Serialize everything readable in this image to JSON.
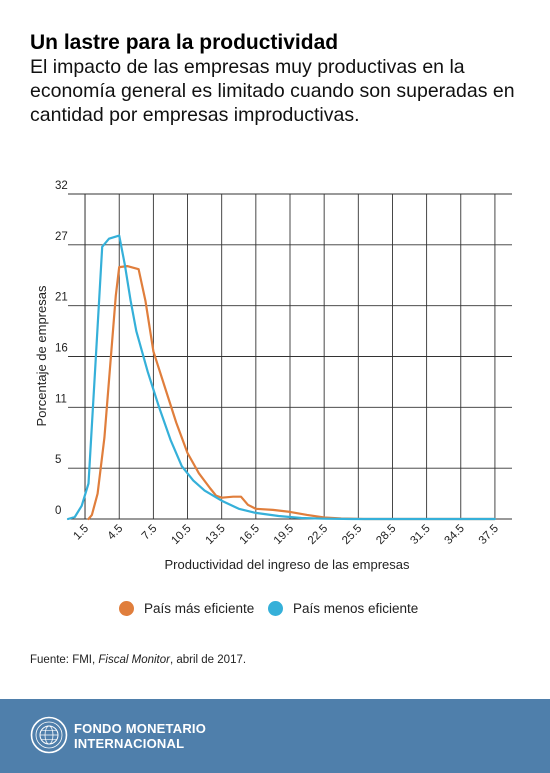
{
  "header": {
    "title": "Un lastre para la productividad",
    "subtitle": "El impacto de las empresas muy productivas en la economía general es limitado cuando son superadas en cantidad por empresas improductivas."
  },
  "chart_data": {
    "type": "line",
    "title": "",
    "xlabel": "Productividad del ingreso de las empresas",
    "ylabel": "Porcentaje de empresas",
    "x_ticks": [
      "1.5",
      "4.5",
      "7.5",
      "10.5",
      "13.5",
      "16.5",
      "19.5",
      "22.5",
      "25.5",
      "28.5",
      "31.5",
      "34.5",
      "37.5"
    ],
    "y_ticks": [
      "0",
      "5",
      "11",
      "16",
      "21",
      "27",
      "32"
    ],
    "xlim": [
      0,
      39
    ],
    "ylim": [
      0,
      32
    ],
    "grid": true,
    "legend_position": "bottom-center",
    "series": [
      {
        "name": "País más eficiente",
        "color": "#e07e3c",
        "points": [
          [
            1.8,
            0
          ],
          [
            2.1,
            0.4
          ],
          [
            2.6,
            2.5
          ],
          [
            3.2,
            8
          ],
          [
            3.7,
            15
          ],
          [
            4.2,
            22
          ],
          [
            4.5,
            24.8
          ],
          [
            5.2,
            24.9
          ],
          [
            6.2,
            24.6
          ],
          [
            6.8,
            21.5
          ],
          [
            7.5,
            16.5
          ],
          [
            8.5,
            13
          ],
          [
            9.5,
            9.5
          ],
          [
            10.5,
            6.5
          ],
          [
            11.5,
            4.5
          ],
          [
            12.5,
            3
          ],
          [
            13,
            2.3
          ],
          [
            13.5,
            2.1
          ],
          [
            14.5,
            2.2
          ],
          [
            15.2,
            2.2
          ],
          [
            15.8,
            1.4
          ],
          [
            16.5,
            1.0
          ],
          [
            18,
            0.9
          ],
          [
            19.5,
            0.7
          ],
          [
            21,
            0.4
          ],
          [
            22.5,
            0.15
          ],
          [
            24,
            0.05
          ],
          [
            26,
            0
          ],
          [
            37.5,
            0
          ]
        ]
      },
      {
        "name": "País menos eficiente",
        "color": "#35b0d9",
        "points": [
          [
            0,
            0
          ],
          [
            0.6,
            0.2
          ],
          [
            1.2,
            1.3
          ],
          [
            1.8,
            3.5
          ],
          [
            2.4,
            15
          ],
          [
            3.0,
            26.8
          ],
          [
            3.6,
            27.6
          ],
          [
            4.5,
            27.9
          ],
          [
            5.0,
            25
          ],
          [
            5.5,
            21.5
          ],
          [
            6.0,
            18.5
          ],
          [
            7.0,
            14.5
          ],
          [
            8.0,
            11
          ],
          [
            9.0,
            7.8
          ],
          [
            10.0,
            5.2
          ],
          [
            11.0,
            3.8
          ],
          [
            12.0,
            2.8
          ],
          [
            13.5,
            1.8
          ],
          [
            15.0,
            1.0
          ],
          [
            16.5,
            0.6
          ],
          [
            18.5,
            0.3
          ],
          [
            20.5,
            0.1
          ],
          [
            22.5,
            0.03
          ],
          [
            25,
            0
          ],
          [
            37.5,
            0
          ]
        ]
      }
    ]
  },
  "legend": [
    {
      "label": "País más eficiente",
      "color": "#e07e3c"
    },
    {
      "label": "País menos eficiente",
      "color": "#35b0d9"
    }
  ],
  "source": {
    "prefix": "Fuente: FMI, ",
    "italic": "Fiscal Monitor",
    "suffix": ", abril de 2017."
  },
  "footer": {
    "org_line1": "FONDO MONETARIO",
    "org_line2": "INTERNACIONAL",
    "seal_icon": "imf-seal-icon",
    "background": "#4f7fab"
  }
}
